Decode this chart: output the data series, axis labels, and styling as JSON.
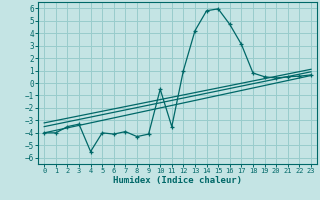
{
  "xlabel": "Humidex (Indice chaleur)",
  "xlim": [
    -0.5,
    23.5
  ],
  "ylim": [
    -6.5,
    6.5
  ],
  "xticks": [
    0,
    1,
    2,
    3,
    4,
    5,
    6,
    7,
    8,
    9,
    10,
    11,
    12,
    13,
    14,
    15,
    16,
    17,
    18,
    19,
    20,
    21,
    22,
    23
  ],
  "yticks": [
    -6,
    -5,
    -4,
    -3,
    -2,
    -1,
    0,
    1,
    2,
    3,
    4,
    5,
    6
  ],
  "background_color": "#c4e4e4",
  "line_color": "#006868",
  "grid_color": "#98cccc",
  "series1_x": [
    0,
    1,
    2,
    3,
    4,
    5,
    6,
    7,
    8,
    9,
    10,
    11,
    12,
    13,
    14,
    15,
    16,
    17,
    18,
    19,
    20,
    21,
    22,
    23
  ],
  "series1_y": [
    -4.0,
    -4.0,
    -3.5,
    -3.3,
    -5.5,
    -4.0,
    -4.1,
    -3.9,
    -4.3,
    -4.1,
    -0.5,
    -3.5,
    1.0,
    4.2,
    5.8,
    5.95,
    4.7,
    3.1,
    0.8,
    0.5,
    0.4,
    0.5,
    0.55,
    0.65
  ],
  "series2_x": [
    0,
    23
  ],
  "series2_y": [
    -4.0,
    0.6
  ],
  "series3_x": [
    0,
    23
  ],
  "series3_y": [
    -3.5,
    0.9
  ],
  "series4_x": [
    0,
    23
  ],
  "series4_y": [
    -3.2,
    1.1
  ]
}
